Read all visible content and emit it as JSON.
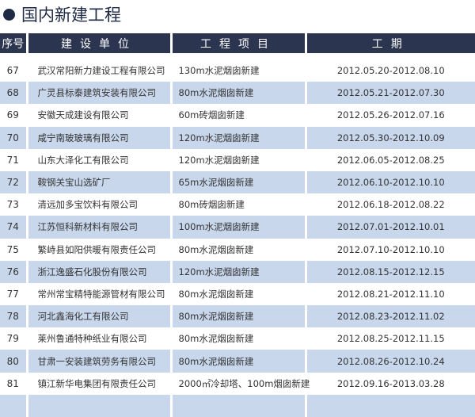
{
  "title": "国内新建工程",
  "headers": [
    "序号",
    "建设单位",
    "工程项目",
    "工期"
  ],
  "rows": [
    [
      "67",
      "武汉常阳新力建设工程有限公司",
      "130m水泥烟囱新建",
      "2012.05.20-2012.08.10"
    ],
    [
      "68",
      "广灵县标泰建筑安装有限公司",
      "80m水泥烟囱新建",
      "2012.05.21-2012.07.30"
    ],
    [
      "69",
      "安徽天成建设有限公司",
      "60m砖烟囱新建",
      "2012.05.26-2012.07.16"
    ],
    [
      "70",
      "咸宁南玻玻璃有限公司",
      "120m水泥烟囱新建",
      "2012.05.30-2012.10.09"
    ],
    [
      "71",
      "山东大泽化工有限公司",
      "120m水泥烟囱新建",
      "2012.06.05-2012.08.25"
    ],
    [
      "72",
      "鞍钢关宝山选矿厂",
      "65m水泥烟囱新建",
      "2012.06.10-2012.10.10"
    ],
    [
      "73",
      "清远加多宝饮料有限公司",
      "80m砖烟囱新建",
      "2012.06.18-2012.08.22"
    ],
    [
      "74",
      "江苏恒科新材料有限公司",
      "100m水泥烟囱新建",
      "2012.07.01-2012.10.01"
    ],
    [
      "75",
      "繁峙县如阳供暖有限责任公司",
      "80m水泥烟囱新建",
      "2012.07.10-2012.10.10"
    ],
    [
      "76",
      "浙江逸盛石化股份有限公司",
      "120m水泥烟囱新建",
      "2012.08.15-2012.12.15"
    ],
    [
      "77",
      "常州常宝精特能源管材有限公司",
      "80m水泥烟囱新建",
      "2012.08.21-2012.11.10"
    ],
    [
      "78",
      "河北鑫海化工有限公司",
      "80m水泥烟囱新建",
      "2012.08.23-2012.11.02"
    ],
    [
      "79",
      "莱州鲁通特种纸业有限公司",
      "80m水泥烟囱新建",
      "2012.08.25-2012.11.15"
    ],
    [
      "80",
      "甘肃一安装建筑劳务有限公司",
      "80m水泥烟囱新建",
      "2012.08.26-2012.10.24"
    ],
    [
      "81",
      "镇江新华电集团有限责任公司",
      "2000㎡冷却塔、100m烟囱新建",
      "2012.09.16-2013.03.28"
    ]
  ]
}
